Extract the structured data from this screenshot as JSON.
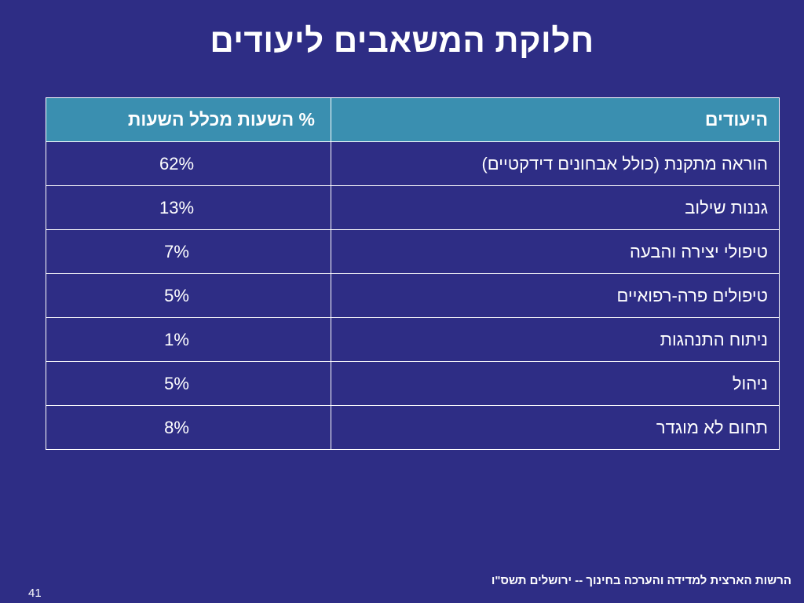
{
  "title": "חלוקת המשאבים ליעודים",
  "table": {
    "headers": {
      "purpose": "היעודים",
      "percent": "% השעות מכלל השעות"
    },
    "rows": [
      {
        "purpose": "הוראה מתקנת (כולל אבחונים דידקטיים)",
        "percent": "62%"
      },
      {
        "purpose": "גננות שילוב",
        "percent": "13%"
      },
      {
        "purpose": "טיפולי יצירה והבעה",
        "percent": "7%"
      },
      {
        "purpose": "טיפולים פרה-רפואיים",
        "percent": "5%"
      },
      {
        "purpose": "ניתוח התנהגות",
        "percent": "1%"
      },
      {
        "purpose": "ניהול",
        "percent": "5%"
      },
      {
        "purpose": "תחום לא מוגדר",
        "percent": "8%"
      }
    ]
  },
  "footer": {
    "source": "הרשות הארצית למדידה והערכה בחינוך  -- ירושלים תשס\"ו",
    "page_number": "41"
  },
  "colors": {
    "background": "#2e2d85",
    "header_fill": "#3a8fb0",
    "text": "#ffffff"
  }
}
